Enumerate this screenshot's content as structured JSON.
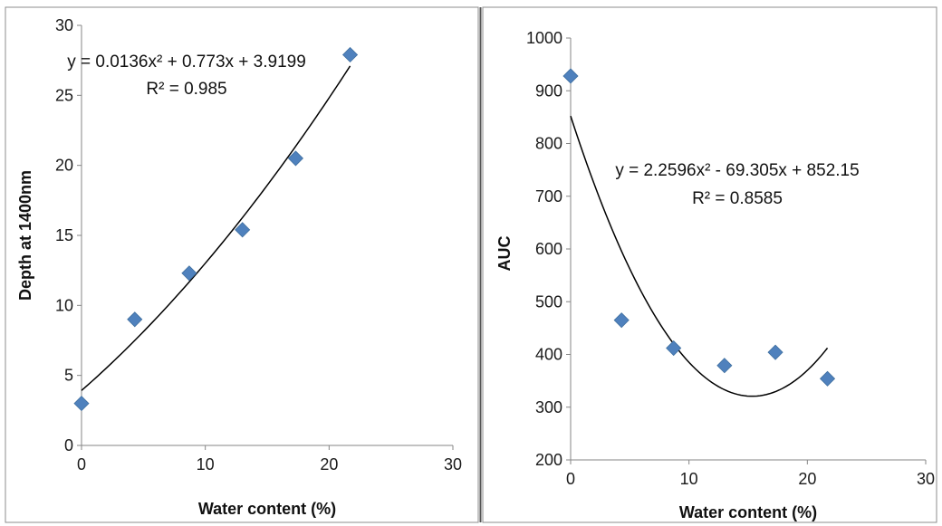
{
  "chart_data": [
    {
      "type": "scatter",
      "xlabel": "Water content (%)",
      "ylabel": "Depth at 1400nm",
      "xlim": [
        0,
        30
      ],
      "ylim": [
        0,
        30
      ],
      "xticks": [
        0,
        10,
        20,
        30
      ],
      "yticks": [
        0,
        5,
        10,
        15,
        20,
        25,
        30
      ],
      "grid": false,
      "points": [
        {
          "x": 0,
          "y": 3.0
        },
        {
          "x": 4.3,
          "y": 9.0
        },
        {
          "x": 8.7,
          "y": 12.3
        },
        {
          "x": 13.0,
          "y": 15.4
        },
        {
          "x": 17.3,
          "y": 20.5
        },
        {
          "x": 21.7,
          "y": 27.9
        }
      ],
      "trendline": {
        "type": "polynomial",
        "a": 0.0136,
        "b": 0.773,
        "c": 3.9199,
        "x_range": [
          0,
          21.7
        ]
      },
      "equation": "y = 0.0136x² + 0.773x + 3.9199",
      "r_squared": "R² = 0.985",
      "marker_color": "#4F81BD"
    },
    {
      "type": "scatter",
      "xlabel": "Water content (%)",
      "ylabel": "AUC",
      "xlim": [
        0,
        30
      ],
      "ylim": [
        200,
        1000
      ],
      "xticks": [
        0,
        10,
        20,
        30
      ],
      "yticks": [
        200,
        300,
        400,
        500,
        600,
        700,
        800,
        900,
        1000
      ],
      "grid": false,
      "points": [
        {
          "x": 0,
          "y": 928
        },
        {
          "x": 4.3,
          "y": 465
        },
        {
          "x": 8.7,
          "y": 412
        },
        {
          "x": 13.0,
          "y": 379
        },
        {
          "x": 17.3,
          "y": 404
        },
        {
          "x": 21.7,
          "y": 354
        }
      ],
      "trendline": {
        "type": "polynomial",
        "a": 2.2596,
        "b": -69.305,
        "c": 852.15,
        "x_range": [
          0,
          21.7
        ]
      },
      "equation": "y = 2.2596x² - 69.305x + 852.15",
      "r_squared": "R² = 0.8585",
      "marker_color": "#4F81BD"
    }
  ]
}
